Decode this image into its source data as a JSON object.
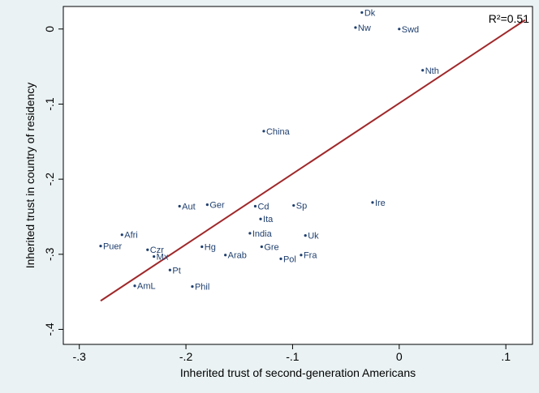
{
  "chart_data": {
    "type": "scatter",
    "xlabel": "Inherited trust of second-generation Americans",
    "ylabel": "Inherited trust in country of residency",
    "xlim": [
      -0.315,
      0.125
    ],
    "ylim": [
      -0.42,
      0.03
    ],
    "xticks": [
      {
        "value": -0.3,
        "label": "-.3"
      },
      {
        "value": -0.2,
        "label": "-.2"
      },
      {
        "value": -0.1,
        "label": "-.1"
      },
      {
        "value": 0,
        "label": "0"
      },
      {
        "value": 0.1,
        "label": ".1"
      }
    ],
    "yticks": [
      {
        "value": 0,
        "label": "0"
      },
      {
        "value": -0.1,
        "label": "-.1"
      },
      {
        "value": -0.2,
        "label": "-.2"
      },
      {
        "value": -0.3,
        "label": "-.3"
      },
      {
        "value": -0.4,
        "label": "-.4"
      }
    ],
    "annotation": "R²=0.51",
    "fit_line": {
      "x": [
        -0.28,
        0.118
      ],
      "y": [
        -0.362,
        0.012
      ],
      "color": "#a0282a"
    },
    "grid": false,
    "marker_color": "#1f3f6e",
    "points": [
      {
        "label": "Dk",
        "x": -0.035,
        "y": 0.022
      },
      {
        "label": "Nw",
        "x": -0.041,
        "y": 0.002
      },
      {
        "label": "Swd",
        "x": 0.0,
        "y": 0.0
      },
      {
        "label": "Nth",
        "x": 0.022,
        "y": -0.055
      },
      {
        "label": "China",
        "x": -0.127,
        "y": -0.136
      },
      {
        "label": "Aut",
        "x": -0.206,
        "y": -0.236
      },
      {
        "label": "Ger",
        "x": -0.18,
        "y": -0.234
      },
      {
        "label": "Cd",
        "x": -0.135,
        "y": -0.236
      },
      {
        "label": "Sp",
        "x": -0.099,
        "y": -0.235
      },
      {
        "label": "Ire",
        "x": -0.025,
        "y": -0.231
      },
      {
        "label": "Ita",
        "x": -0.13,
        "y": -0.253
      },
      {
        "label": "Afri",
        "x": -0.26,
        "y": -0.274
      },
      {
        "label": "India",
        "x": -0.14,
        "y": -0.272
      },
      {
        "label": "Uk",
        "x": -0.088,
        "y": -0.275
      },
      {
        "label": "Puer",
        "x": -0.28,
        "y": -0.289
      },
      {
        "label": "Czr",
        "x": -0.236,
        "y": -0.294
      },
      {
        "label": "Hg",
        "x": -0.185,
        "y": -0.29
      },
      {
        "label": "Gre",
        "x": -0.129,
        "y": -0.29
      },
      {
        "label": "Mx",
        "x": -0.23,
        "y": -0.303
      },
      {
        "label": "Arab",
        "x": -0.163,
        "y": -0.301
      },
      {
        "label": "Pol",
        "x": -0.111,
        "y": -0.306
      },
      {
        "label": "Fra",
        "x": -0.092,
        "y": -0.301
      },
      {
        "label": "Pt",
        "x": -0.215,
        "y": -0.321
      },
      {
        "label": "AmL",
        "x": -0.248,
        "y": -0.342
      },
      {
        "label": "Phil",
        "x": -0.194,
        "y": -0.343
      }
    ]
  }
}
